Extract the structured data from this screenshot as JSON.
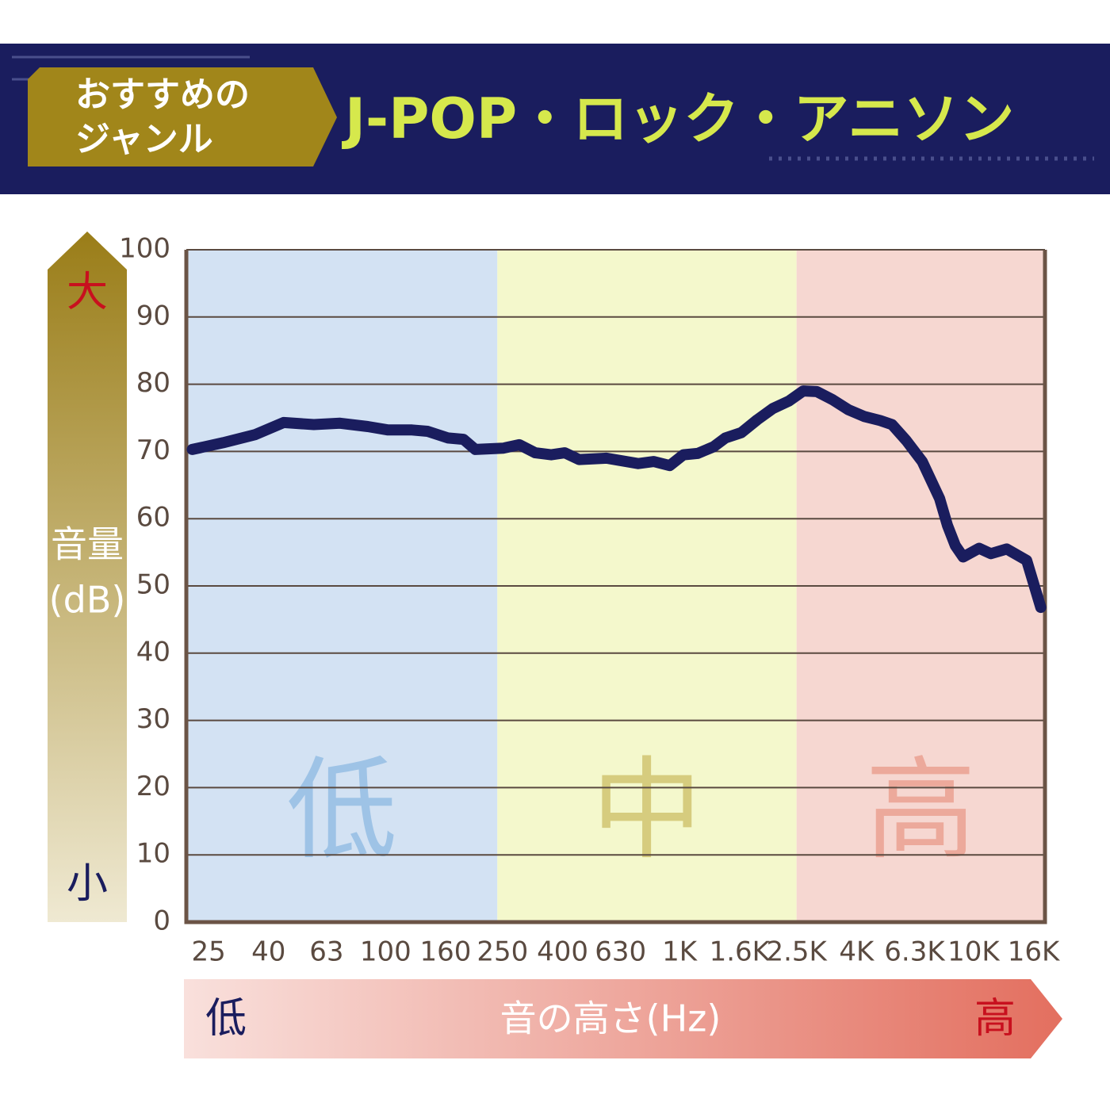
{
  "header": {
    "badge": [
      "おすすめの",
      "ジャンル"
    ],
    "title": "J-POP・ロック・アニソン"
  },
  "chart_data": {
    "type": "line",
    "ylabel": [
      "音量",
      "(dB)"
    ],
    "y_high": "大",
    "y_low": "小",
    "xlabel": "音の高さ(Hz)",
    "x_low": "低",
    "x_high": "高",
    "log_x": true,
    "grid": true,
    "xlim": [
      21,
      17500
    ],
    "ylim": [
      0,
      100
    ],
    "yticks": [
      0,
      10,
      20,
      30,
      40,
      50,
      60,
      70,
      80,
      90,
      100
    ],
    "xticks": [
      25,
      40,
      63,
      100,
      160,
      250,
      400,
      630,
      {
        "value": 1000,
        "label": "1K"
      },
      {
        "value": 1600,
        "label": "1.6K"
      },
      {
        "value": 2500,
        "label": "2.5K"
      },
      {
        "value": 4000,
        "label": "4K"
      },
      {
        "value": 6300,
        "label": "6.3K"
      },
      {
        "value": 10000,
        "label": "10K"
      },
      {
        "value": 16000,
        "label": "16K"
      }
    ],
    "bands": [
      {
        "label": "低",
        "range": [
          21,
          240
        ],
        "color": "#d3e2f3",
        "text_color": "#9ec3e6"
      },
      {
        "label": "中",
        "range": [
          240,
          2500
        ],
        "color": "#f4f8cc",
        "text_color": "#d6cc7e"
      },
      {
        "label": "高",
        "range": [
          2500,
          17500
        ],
        "color": "#f6d7d1",
        "text_color": "#eca99b"
      }
    ],
    "x": [
      22,
      28,
      36,
      45,
      57,
      70,
      87,
      102,
      123,
      139,
      163,
      184,
      202,
      252,
      285,
      323,
      366,
      407,
      455,
      564,
      723,
      818,
      926,
      1030,
      1152,
      1305,
      1432,
      1622,
      1837,
      2080,
      2355,
      2633,
      2929,
      3315,
      3754,
      4251,
      4813,
      5283,
      5909,
      6690,
      7667,
      8155,
      8671,
      9221,
      10443,
      11454,
      12970,
      15160,
      16930
    ],
    "series": [
      {
        "color": "#1a1d5e",
        "values": [
          70.3,
          71.3,
          72.5,
          74.3,
          74.0,
          74.2,
          73.7,
          73.2,
          73.2,
          73.0,
          72.0,
          71.8,
          70.3,
          70.5,
          71.0,
          69.8,
          69.5,
          69.8,
          68.8,
          69.0,
          68.2,
          68.5,
          67.9,
          69.5,
          69.7,
          70.7,
          72.0,
          72.8,
          74.7,
          76.4,
          77.5,
          79.0,
          78.9,
          77.7,
          76.2,
          75.2,
          74.6,
          74.0,
          71.6,
          68.5,
          63.0,
          59.0,
          56.0,
          54.3,
          55.6,
          54.8,
          55.5,
          53.8,
          46.8
        ]
      }
    ]
  }
}
